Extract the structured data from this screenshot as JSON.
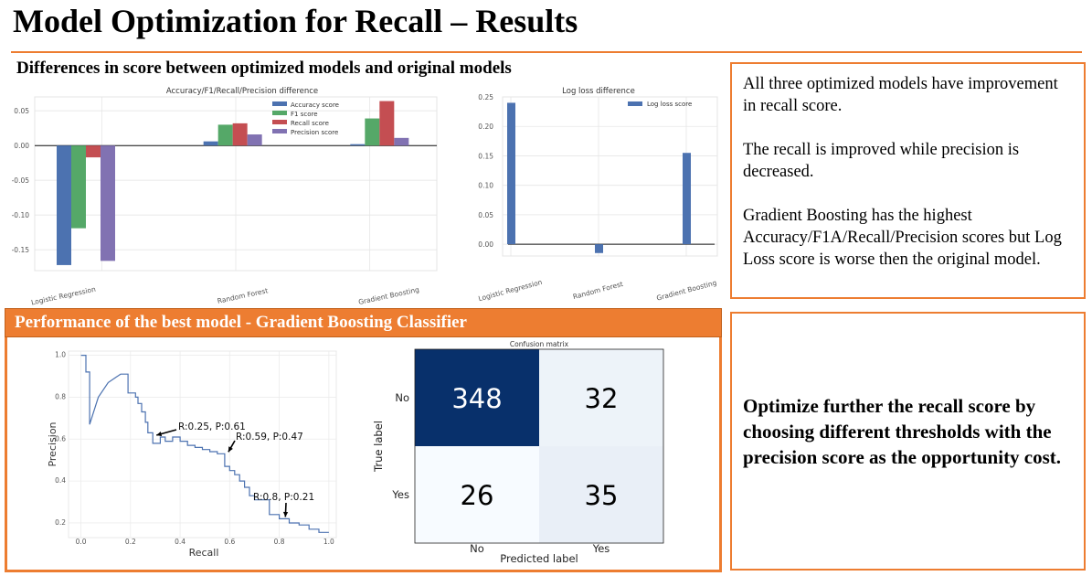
{
  "title": "Model Optimization for Recall – Results",
  "diff_section": {
    "heading": "Differences in score between optimized models and original models"
  },
  "notes": [
    "All three optimized models have improvement in recall score.",
    "The recall is improved while precision is decreased.",
    "Gradient Boosting has the highest Accuracy/F1A/Recall/Precision scores but Log Loss score is worse then the original model."
  ],
  "perf_section": {
    "heading": "Performance of the best model - Gradient Boosting Classifier"
  },
  "conclusion": "Optimize further the recall score by choosing different thresholds with the precision score as the opportunity cost.",
  "colors": {
    "accent": "#ED7D31",
    "accuracy": "#4C72B0",
    "f1": "#55A868",
    "recall": "#C44E52",
    "precision": "#8172B2",
    "cm_dark": "#08306B",
    "cm_light": "#F7FBFF"
  },
  "chart_data": [
    {
      "type": "bar",
      "title": "Accuracy/F1/Recall/Precision difference",
      "categories": [
        "Logistic Regression",
        "Random Forest",
        "Gradient Boosting"
      ],
      "series": [
        {
          "name": "Accuracy score",
          "values": [
            -0.172,
            0.006,
            0.002
          ]
        },
        {
          "name": "F1 score",
          "values": [
            -0.119,
            0.03,
            0.039
          ]
        },
        {
          "name": "Recall score",
          "values": [
            -0.017,
            0.032,
            0.064
          ]
        },
        {
          "name": "Precision score",
          "values": [
            -0.166,
            0.016,
            0.011
          ]
        }
      ],
      "ylim": [
        -0.18,
        0.07
      ],
      "yticks": [
        "0.05",
        "0.00",
        "-0.05",
        "-0.10",
        "-0.15"
      ],
      "legend": "top-right",
      "grid": true
    },
    {
      "type": "bar",
      "title": "Log loss difference",
      "categories": [
        "Logistic Regression",
        "Random Forest",
        "Gradient Boosting"
      ],
      "series": [
        {
          "name": "Log loss score",
          "values": [
            0.24,
            -0.015,
            0.155
          ]
        }
      ],
      "ylim": [
        -0.02,
        0.25
      ],
      "yticks": [
        "0.25",
        "0.20",
        "0.15",
        "0.10",
        "0.05",
        "0.00"
      ],
      "legend": "top-right",
      "grid": true
    },
    {
      "type": "line",
      "xlabel": "Recall",
      "ylabel": "Precision",
      "xlim": [
        -0.05,
        1.03
      ],
      "ylim": [
        0.13,
        1.02
      ],
      "xticks": [
        "0.0",
        "0.2",
        "0.4",
        "0.6",
        "0.8",
        "1.0"
      ],
      "yticks": [
        "1.0",
        "0.8",
        "0.6",
        "0.4",
        "0.2"
      ],
      "x": [
        0.0,
        0.02,
        0.02,
        0.035,
        0.035,
        0.07,
        0.11,
        0.16,
        0.19,
        0.19,
        0.22,
        0.22,
        0.23,
        0.23,
        0.245,
        0.245,
        0.26,
        0.26,
        0.27,
        0.27,
        0.29,
        0.29,
        0.32,
        0.32,
        0.34,
        0.34,
        0.37,
        0.37,
        0.4,
        0.4,
        0.43,
        0.43,
        0.46,
        0.46,
        0.49,
        0.49,
        0.52,
        0.52,
        0.55,
        0.55,
        0.58,
        0.58,
        0.6,
        0.6,
        0.62,
        0.62,
        0.64,
        0.64,
        0.66,
        0.66,
        0.68,
        0.68,
        0.7,
        0.7,
        0.72,
        0.72,
        0.76,
        0.76,
        0.8,
        0.8,
        0.84,
        0.84,
        0.88,
        0.88,
        0.92,
        0.92,
        0.96,
        0.96,
        1.0
      ],
      "y": [
        1.0,
        1.0,
        0.92,
        0.92,
        0.67,
        0.8,
        0.87,
        0.91,
        0.91,
        0.82,
        0.82,
        0.8,
        0.8,
        0.77,
        0.77,
        0.73,
        0.73,
        0.68,
        0.68,
        0.63,
        0.63,
        0.58,
        0.58,
        0.61,
        0.61,
        0.59,
        0.59,
        0.61,
        0.61,
        0.59,
        0.59,
        0.57,
        0.57,
        0.56,
        0.56,
        0.55,
        0.55,
        0.54,
        0.54,
        0.53,
        0.53,
        0.47,
        0.47,
        0.45,
        0.45,
        0.43,
        0.43,
        0.4,
        0.4,
        0.37,
        0.37,
        0.33,
        0.33,
        0.31,
        0.31,
        0.31,
        0.31,
        0.24,
        0.24,
        0.22,
        0.22,
        0.2,
        0.2,
        0.19,
        0.19,
        0.17,
        0.17,
        0.155,
        0.155
      ],
      "annotations": [
        {
          "text": "R:0.25, P:0.61",
          "x": 0.29,
          "y": 0.61
        },
        {
          "text": "R:0.59, P:0.47",
          "x": 0.58,
          "y": 0.53
        },
        {
          "text": "R:0.8, P:0.21",
          "x": 0.81,
          "y": 0.22
        }
      ]
    },
    {
      "type": "heatmap",
      "title": "Confusion matrix",
      "xlabel": "Predicted label",
      "ylabel": "True label",
      "x_labels": [
        "No",
        "Yes"
      ],
      "y_labels": [
        "No",
        "Yes"
      ],
      "values": [
        [
          348,
          32
        ],
        [
          26,
          35
        ]
      ]
    }
  ]
}
